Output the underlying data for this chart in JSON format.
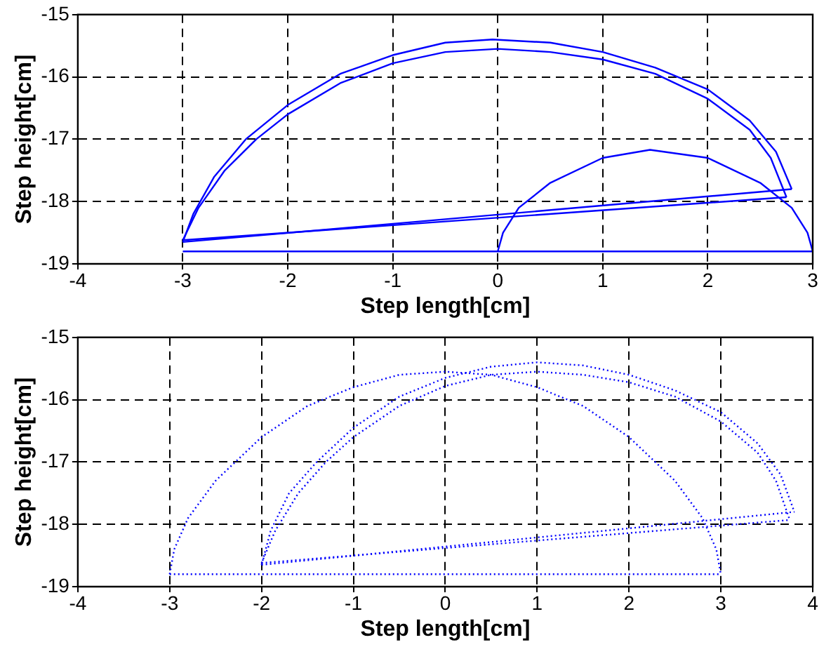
{
  "chart_data": [
    {
      "type": "line",
      "xlabel": "Step length[cm]",
      "ylabel": "Step height[cm]",
      "xlim": [
        -4,
        3
      ],
      "ylim": [
        -19,
        -15
      ],
      "xticks": [
        -4,
        -3,
        -2,
        -1,
        0,
        1,
        2,
        3
      ],
      "yticks": [
        -19,
        -18,
        -17,
        -16,
        -15
      ],
      "grid": true,
      "legend": false,
      "marker": "none",
      "line_style": "solid",
      "series": [
        {
          "color": "#0000ff",
          "x": [
            -3,
            -2.9,
            -2.7,
            -2.4,
            -2,
            -1.5,
            -1,
            -0.5,
            -0.05,
            0.5,
            1,
            1.5,
            2,
            2.4,
            2.65,
            2.8
          ],
          "values": [
            -18.65,
            -18.2,
            -17.6,
            -17.0,
            -16.45,
            -15.95,
            -15.65,
            -15.45,
            -15.4,
            -15.45,
            -15.6,
            -15.85,
            -16.2,
            -16.7,
            -17.2,
            -17.8
          ]
        },
        {
          "color": "#0000ff",
          "x": [
            -3,
            2.8
          ],
          "values": [
            -18.65,
            -17.8
          ]
        },
        {
          "color": "#0000ff",
          "x": [
            -3,
            -2.85,
            -2.6,
            -2.3,
            -2,
            -1.5,
            -1,
            -0.5,
            0,
            0.5,
            1,
            1.5,
            2,
            2.4,
            2.6,
            2.75
          ],
          "values": [
            -18.62,
            -18.1,
            -17.5,
            -17.0,
            -16.6,
            -16.1,
            -15.78,
            -15.6,
            -15.55,
            -15.6,
            -15.72,
            -15.95,
            -16.35,
            -16.85,
            -17.3,
            -17.93
          ]
        },
        {
          "color": "#0000ff",
          "x": [
            -3,
            2.75
          ],
          "values": [
            -18.62,
            -17.93
          ]
        },
        {
          "color": "#0000ff",
          "x": [
            0,
            0.05,
            0.2,
            0.5,
            1,
            1.45,
            2,
            2.5,
            2.8,
            2.95,
            3
          ],
          "values": [
            -18.8,
            -18.5,
            -18.1,
            -17.7,
            -17.3,
            -17.17,
            -17.3,
            -17.7,
            -18.1,
            -18.5,
            -18.8
          ]
        },
        {
          "color": "#0000ff",
          "x": [
            -3,
            3
          ],
          "values": [
            -18.8,
            -18.8
          ]
        }
      ]
    },
    {
      "type": "line",
      "xlabel": "Step length[cm]",
      "ylabel": "Step height[cm]",
      "xlim": [
        -4,
        4
      ],
      "ylim": [
        -19,
        -15
      ],
      "xticks": [
        -4,
        -3,
        -2,
        -1,
        0,
        1,
        2,
        3,
        4
      ],
      "yticks": [
        -19,
        -18,
        -17,
        -16,
        -15
      ],
      "grid": true,
      "legend": false,
      "marker": "none",
      "line_style": "dotted",
      "series": [
        {
          "color": "#0000ff",
          "x": [
            -3,
            -2.95,
            -2.8,
            -2.5,
            -2,
            -1.5,
            -1,
            -0.5,
            0,
            0.5,
            1,
            1.5,
            2,
            2.5,
            2.8,
            2.95,
            3
          ],
          "values": [
            -18.8,
            -18.4,
            -17.9,
            -17.3,
            -16.6,
            -16.1,
            -15.8,
            -15.6,
            -15.55,
            -15.6,
            -15.8,
            -16.1,
            -16.6,
            -17.3,
            -17.9,
            -18.4,
            -18.8
          ]
        },
        {
          "color": "#0000ff",
          "x": [
            -2,
            -1.9,
            -1.7,
            -1.4,
            -1,
            -0.5,
            0,
            0.5,
            1,
            1.5,
            2,
            2.5,
            3,
            3.4,
            3.65,
            3.8
          ],
          "values": [
            -18.65,
            -18.1,
            -17.5,
            -17.0,
            -16.45,
            -15.95,
            -15.65,
            -15.47,
            -15.4,
            -15.45,
            -15.6,
            -15.85,
            -16.2,
            -16.7,
            -17.2,
            -17.8
          ]
        },
        {
          "color": "#0000ff",
          "x": [
            -2,
            3.8
          ],
          "values": [
            -18.65,
            -17.8
          ]
        },
        {
          "color": "#0000ff",
          "x": [
            -2,
            -1.85,
            -1.6,
            -1.3,
            -1,
            -0.5,
            0,
            0.5,
            1,
            1.5,
            2,
            2.5,
            3,
            3.4,
            3.6,
            3.75
          ],
          "values": [
            -18.62,
            -18.1,
            -17.5,
            -17.0,
            -16.6,
            -16.1,
            -15.78,
            -15.6,
            -15.55,
            -15.6,
            -15.72,
            -15.95,
            -16.35,
            -16.85,
            -17.3,
            -17.93
          ]
        },
        {
          "color": "#0000ff",
          "x": [
            -2,
            3.75
          ],
          "values": [
            -18.62,
            -17.93
          ]
        },
        {
          "color": "#0000ff",
          "x": [
            -3,
            3
          ],
          "values": [
            -18.8,
            -18.8
          ]
        }
      ]
    }
  ]
}
